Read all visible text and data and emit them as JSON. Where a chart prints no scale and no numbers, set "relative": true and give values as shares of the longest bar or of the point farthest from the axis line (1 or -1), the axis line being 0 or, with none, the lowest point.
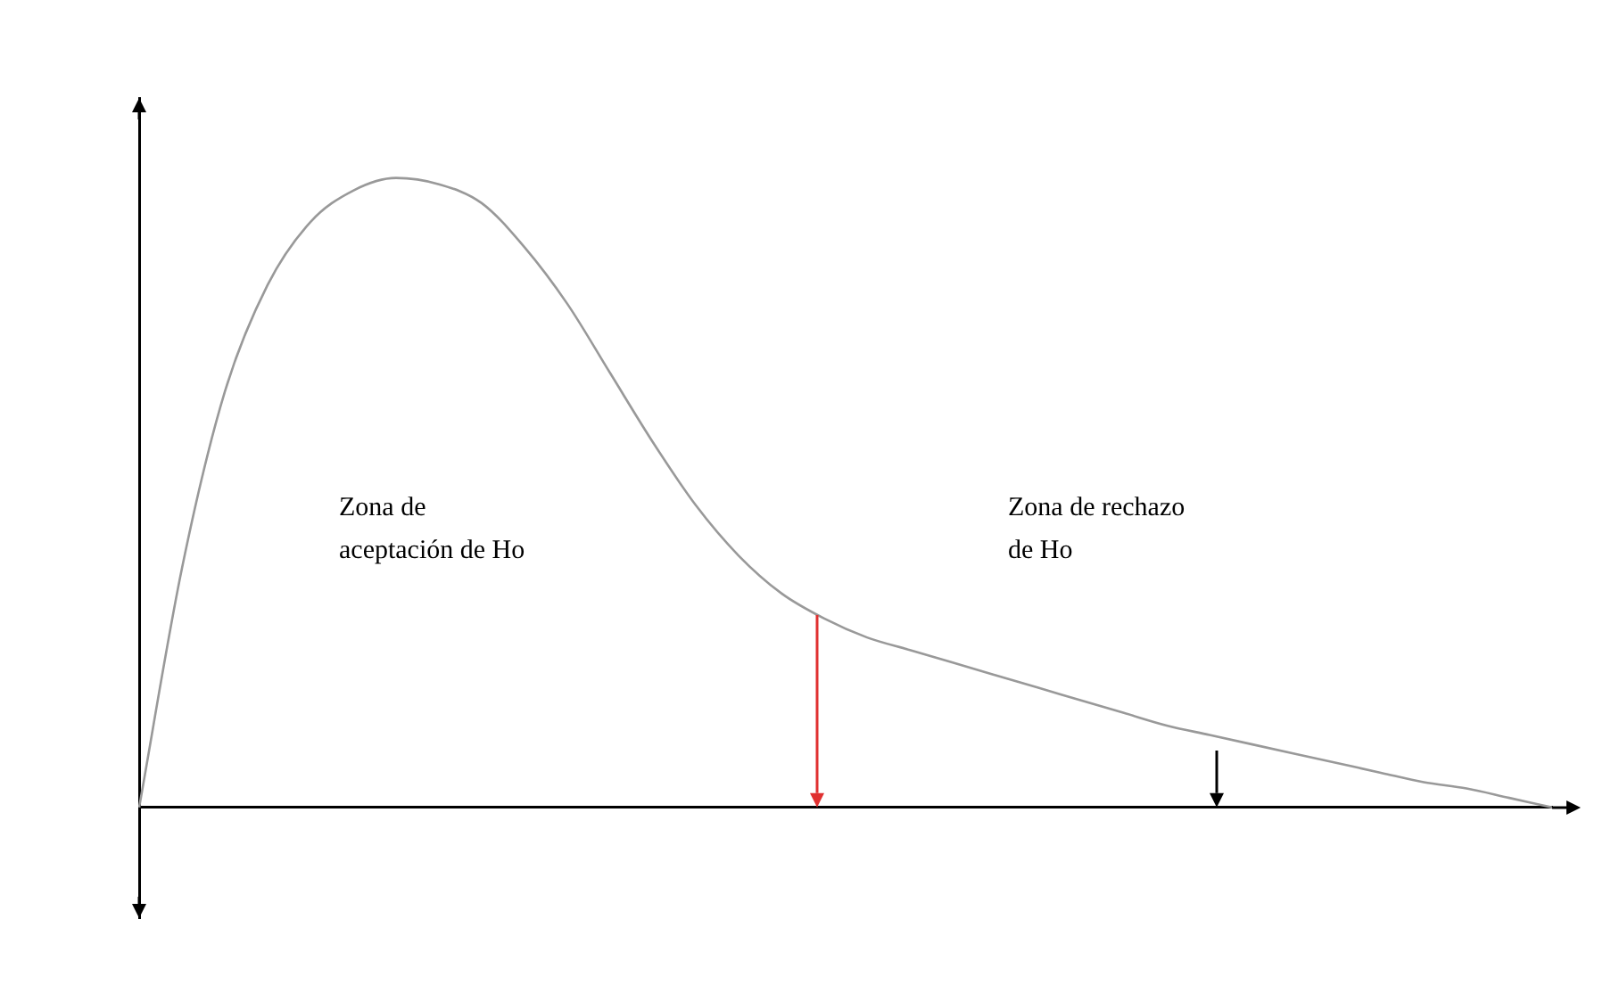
{
  "chart_data": {
    "type": "line",
    "relative": true,
    "legend": false,
    "grid": false,
    "marker": "none",
    "line_style": "solid",
    "categories": [
      null,
      null,
      null,
      null,
      null,
      null,
      null,
      null,
      null,
      null,
      null,
      null,
      null,
      null,
      null,
      null,
      null,
      null,
      null,
      null,
      null,
      null,
      null,
      null,
      null,
      null,
      null,
      null,
      null,
      null,
      null,
      null,
      null,
      null
    ],
    "series": [
      {
        "color": "#999999",
        "values": [
          0,
          0.38,
          0.66,
          0.83,
          0.93,
          0.98,
          1,
          0.99,
          0.96,
          0.89,
          0.8,
          0.69,
          0.58,
          0.48,
          0.4,
          0.34,
          0.3,
          0.27,
          0.25,
          0.23,
          0.21,
          0.19,
          0.17,
          0.15,
          0.13,
          0.115,
          0.1,
          0.085,
          0.07,
          0.055,
          0.04,
          0.03,
          0.015,
          0
        ]
      }
    ],
    "annotations": [
      "Zona de aceptación de Ho",
      "Zona de rechazo de Ho"
    ]
  }
}
